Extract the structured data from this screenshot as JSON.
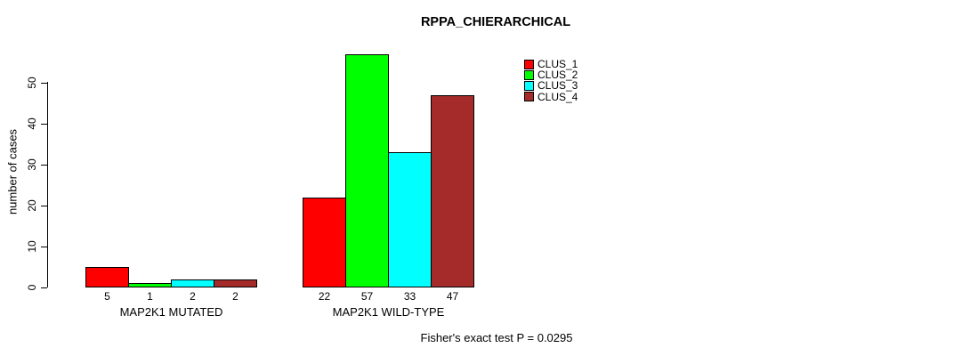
{
  "chart_data": {
    "type": "bar",
    "title": "RPPA_CHIERARCHICAL",
    "ylabel": "number of cases",
    "xlabel": "",
    "annotation": "Fisher's exact test P = 0.0295",
    "yticks": [
      0,
      10,
      20,
      30,
      40,
      50
    ],
    "ylim": [
      0,
      50
    ],
    "grid": false,
    "legend_position": "top-right",
    "groups": [
      "MAP2K1 MUTATED",
      "MAP2K1 WILD-TYPE"
    ],
    "series": [
      {
        "name": "CLUS_1",
        "color": "#FF0000",
        "values": [
          5,
          22
        ]
      },
      {
        "name": "CLUS_2",
        "color": "#00FF00",
        "values": [
          1,
          57
        ]
      },
      {
        "name": "CLUS_3",
        "color": "#00FFFF",
        "values": [
          2,
          33
        ]
      },
      {
        "name": "CLUS_4",
        "color": "#A52A2A",
        "values": [
          2,
          47
        ]
      }
    ],
    "bar_value_labels_shown": true
  }
}
